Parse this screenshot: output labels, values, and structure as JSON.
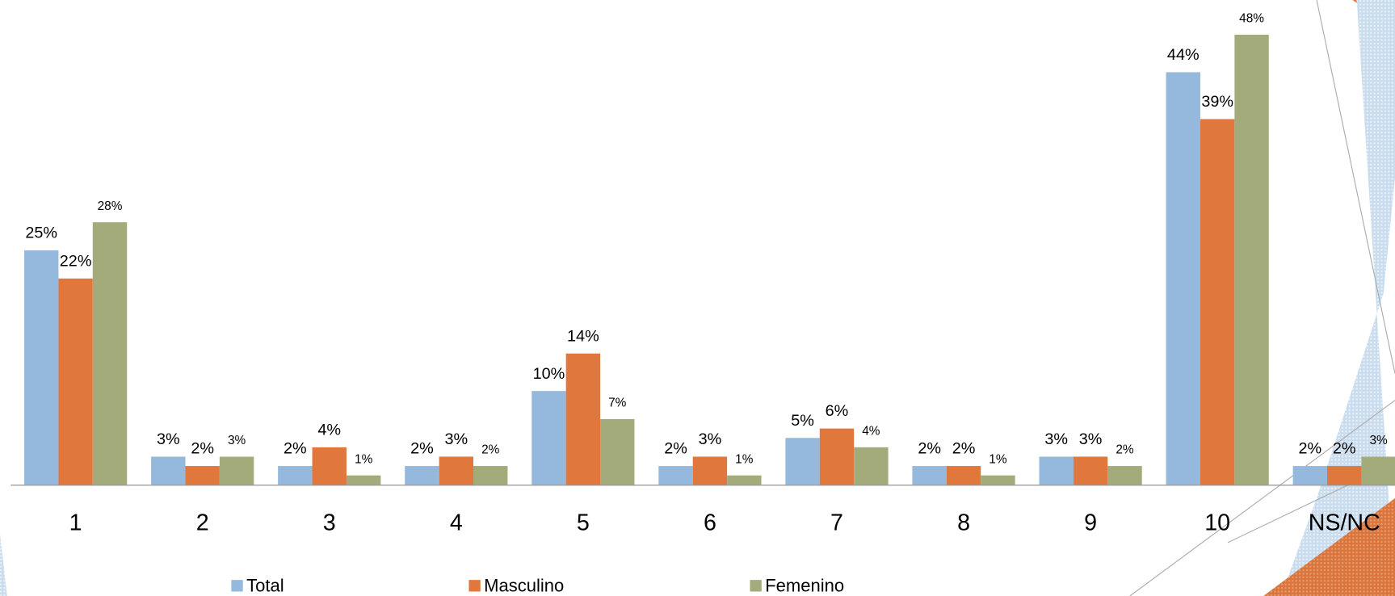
{
  "chart_data": {
    "type": "bar",
    "categories": [
      "1",
      "2",
      "3",
      "4",
      "5",
      "6",
      "7",
      "8",
      "9",
      "10",
      "NS/NC"
    ],
    "series": [
      {
        "name": "Total",
        "color": "#95b9dd",
        "values": [
          25,
          3,
          2,
          2,
          10,
          2,
          5,
          2,
          3,
          44,
          2
        ],
        "value_labels": [
          "25%",
          "3%",
          "2%",
          "2%",
          "10%",
          "2%",
          "5%",
          "2%",
          "3%",
          "44%",
          "2%"
        ]
      },
      {
        "name": "Masculino",
        "color": "#e0773d",
        "values": [
          22,
          2,
          4,
          3,
          14,
          3,
          6,
          2,
          3,
          39,
          2
        ],
        "value_labels": [
          "22%",
          "2%",
          "4%",
          "3%",
          "14%",
          "3%",
          "6%",
          "2%",
          "3%",
          "39%",
          "2%"
        ]
      },
      {
        "name": "Femenino",
        "color": "#a3ab7b",
        "values": [
          28,
          3,
          1,
          2,
          7,
          1,
          4,
          1,
          2,
          48,
          3
        ],
        "value_labels": [
          "28%",
          "3%",
          "1%",
          "2%",
          "7%",
          "1%",
          "4%",
          "1%",
          "2%",
          "48%",
          "3%"
        ]
      }
    ]
  }
}
